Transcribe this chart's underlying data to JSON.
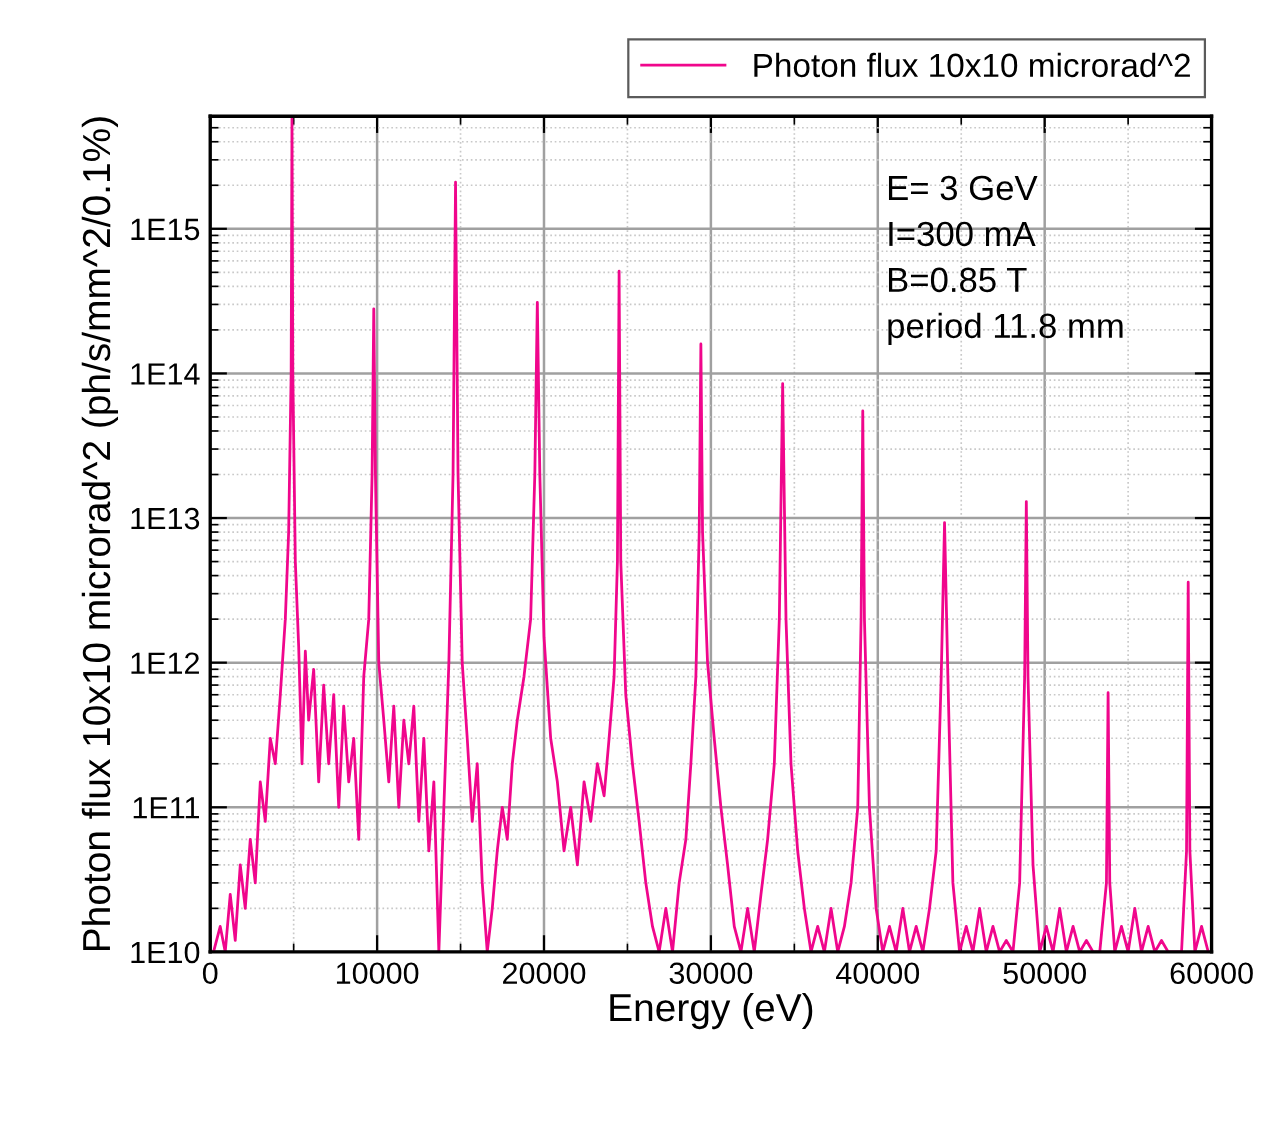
{
  "chart_data": {
    "type": "line",
    "xlabel": "Energy (eV)",
    "ylabel": "Photon flux 10x10 microrad^2 (ph/s/mm^2/0.1%)",
    "annotations": [
      "E= 3 GeV",
      "I=300 mA",
      "B=0.85 T",
      "period 11.8 mm"
    ],
    "xlim": [
      0,
      60000
    ],
    "xticks": [
      0,
      10000,
      20000,
      30000,
      40000,
      50000,
      60000
    ],
    "ylim": [
      10000000000.0,
      6000000000000000.0
    ],
    "yticks": [
      {
        "value": 10000000000.0,
        "label": "1E10"
      },
      {
        "value": 100000000000.0,
        "label": "1E11"
      },
      {
        "value": 1000000000000.0,
        "label": "1E12"
      },
      {
        "value": 10000000000000.0,
        "label": "1E13"
      },
      {
        "value": 100000000000000.0,
        "label": "1E14"
      },
      {
        "value": 1000000000000000.0,
        "label": "1E15"
      }
    ],
    "log": "y",
    "grid": true,
    "legend": "top right",
    "series": [
      {
        "name": "Photon flux 10x10 microrad^2",
        "color": "#f0068c",
        "x": [
          200,
          600,
          900,
          1200,
          1500,
          1800,
          2100,
          2400,
          2700,
          3000,
          3300,
          3600,
          3900,
          4200,
          4500,
          4700,
          4850,
          4900,
          4950,
          5100,
          5300,
          5500,
          5700,
          5900,
          6200,
          6500,
          6800,
          7100,
          7400,
          7700,
          8000,
          8300,
          8600,
          8900,
          9200,
          9500,
          9700,
          9800,
          9900,
          10100,
          10400,
          10700,
          11000,
          11300,
          11600,
          11900,
          12200,
          12500,
          12800,
          13100,
          13400,
          13700,
          14000,
          14300,
          14550,
          14700,
          14850,
          15100,
          15400,
          15700,
          16000,
          16300,
          16600,
          16900,
          17200,
          17500,
          17800,
          18100,
          18400,
          18800,
          19200,
          19450,
          19600,
          19750,
          20000,
          20400,
          20800,
          21200,
          21600,
          22000,
          22400,
          22800,
          23200,
          23600,
          23900,
          24200,
          24400,
          24500,
          24600,
          24900,
          25300,
          25700,
          26100,
          26500,
          26900,
          27300,
          27700,
          28100,
          28500,
          28800,
          29100,
          29300,
          29400,
          29500,
          29800,
          30200,
          30600,
          31000,
          31400,
          31800,
          32200,
          32600,
          33000,
          33400,
          33800,
          34100,
          34300,
          34500,
          34800,
          35200,
          35600,
          36000,
          36400,
          36800,
          37200,
          37600,
          38000,
          38400,
          38800,
          39000,
          39100,
          39200,
          39500,
          39900,
          40300,
          40700,
          41100,
          41500,
          41900,
          42300,
          42700,
          43100,
          43500,
          43800,
          44000,
          44200,
          44500,
          44900,
          45300,
          45700,
          46100,
          46500,
          46900,
          47300,
          47700,
          48100,
          48500,
          48800,
          48900,
          49000,
          49300,
          49700,
          50100,
          50500,
          50900,
          51300,
          51700,
          52100,
          52500,
          52900,
          53300,
          53700,
          53800,
          53900,
          54200,
          54600,
          55000,
          55400,
          55800,
          56200,
          56600,
          57000,
          57400,
          57800,
          58200,
          58500,
          58600,
          58700,
          59000,
          59400,
          59800
        ],
        "values": [
          10000000000.0,
          15000000000.0,
          10000000000.0,
          25000000000.0,
          12000000000.0,
          40000000000.0,
          20000000000.0,
          60000000000.0,
          30000000000.0,
          150000000000.0,
          80000000000.0,
          300000000000.0,
          200000000000.0,
          600000000000.0,
          2000000000000.0,
          8000000000000.0,
          100000000000000.0,
          5800000000000000.0,
          100000000000000.0,
          5000000000000.0,
          1300000000000.0,
          200000000000.0,
          1200000000000.0,
          400000000000.0,
          900000000000.0,
          150000000000.0,
          700000000000.0,
          200000000000.0,
          600000000000.0,
          100000000000.0,
          500000000000.0,
          150000000000.0,
          300000000000.0,
          60000000000.0,
          800000000000.0,
          2000000000000.0,
          20000000000000.0,
          280000000000000.0,
          20000000000000.0,
          1000000000000.0,
          400000000000.0,
          150000000000.0,
          500000000000.0,
          100000000000.0,
          400000000000.0,
          200000000000.0,
          500000000000.0,
          80000000000.0,
          300000000000.0,
          50000000000.0,
          150000000000.0,
          10000000000.0,
          100000000000.0,
          1000000000000.0,
          20000000000000.0,
          2100000000000000.0,
          20000000000000.0,
          1000000000000.0,
          300000000000.0,
          80000000000.0,
          200000000000.0,
          30000000000.0,
          10000000000.0,
          20000000000.0,
          50000000000.0,
          100000000000.0,
          60000000000.0,
          200000000000.0,
          400000000000.0,
          800000000000.0,
          2000000000000.0,
          20000000000000.0,
          310000000000000.0,
          20000000000000.0,
          1500000000000.0,
          300000000000.0,
          150000000000.0,
          50000000000.0,
          100000000000.0,
          40000000000.0,
          150000000000.0,
          80000000000.0,
          200000000000.0,
          120000000000.0,
          300000000000.0,
          800000000000.0,
          5000000000000.0,
          510000000000000.0,
          5000000000000.0,
          600000000000.0,
          200000000000.0,
          80000000000.0,
          30000000000.0,
          15000000000.0,
          10000000000.0,
          20000000000.0,
          10000000000.0,
          30000000000.0,
          60000000000.0,
          200000000000.0,
          800000000000.0,
          8000000000000.0,
          160000000000000.0,
          8000000000000.0,
          1000000000000.0,
          300000000000.0,
          100000000000.0,
          40000000000.0,
          15000000000.0,
          10000000000.0,
          20000000000.0,
          10000000000.0,
          25000000000.0,
          60000000000.0,
          200000000000.0,
          2000000000000.0,
          85000000000000.0,
          2000000000000.0,
          200000000000.0,
          50000000000.0,
          20000000000.0,
          10000000000.0,
          15000000000.0,
          10000000000.0,
          20000000000.0,
          10000000000.0,
          15000000000.0,
          30000000000.0,
          100000000000.0,
          2000000000000.0,
          55000000000000.0,
          2000000000000.0,
          100000000000.0,
          20000000000.0,
          10000000000.0,
          15000000000.0,
          10000000000.0,
          20000000000.0,
          10000000000.0,
          15000000000.0,
          10000000000.0,
          20000000000.0,
          50000000000.0,
          800000000000.0,
          9300000000000.0,
          800000000000.0,
          30000000000.0,
          10000000000.0,
          15000000000.0,
          10000000000.0,
          20000000000.0,
          10000000000.0,
          15000000000.0,
          10000000000.0,
          12000000000.0,
          10000000000.0,
          30000000000.0,
          800000000000.0,
          13000000000000.0,
          800000000000.0,
          40000000000.0,
          10000000000.0,
          15000000000.0,
          10000000000.0,
          20000000000.0,
          10000000000.0,
          15000000000.0,
          10000000000.0,
          12000000000.0,
          10000000000.0,
          10000000000.0,
          30000000000.0,
          620000000000.0,
          30000000000.0,
          10000000000.0,
          15000000000.0,
          10000000000.0,
          20000000000.0,
          10000000000.0,
          15000000000.0,
          10000000000.0,
          12000000000.0,
          10000000000.0,
          10000000000.0,
          10000000000.0,
          50000000000.0,
          3600000000000.0,
          50000000000.0,
          10000000000.0,
          15000000000.0,
          10000000000.0
        ]
      }
    ]
  }
}
